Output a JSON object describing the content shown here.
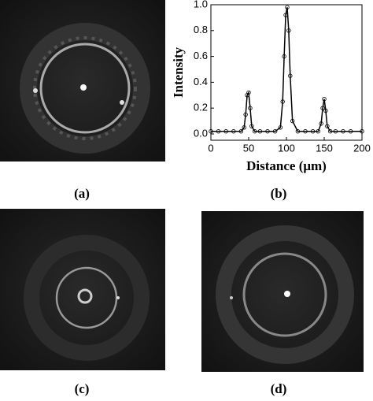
{
  "chart_data": {
    "type": "line",
    "xlabel": "Distance (μm)",
    "ylabel": "Intensity",
    "xlim": [
      0,
      200
    ],
    "xticks": [
      0,
      50,
      100,
      150,
      200
    ],
    "ylim": [
      0,
      1.0
    ],
    "yticks": [
      {
        "value": 0,
        "label": "0.0"
      },
      0.2,
      0.4,
      0.6,
      0.8,
      {
        "value": 1.0,
        "label": "1.0"
      }
    ],
    "x": [
      0,
      10,
      20,
      30,
      40,
      44,
      46,
      48,
      50,
      52,
      54,
      58,
      65,
      75,
      85,
      92,
      95,
      97,
      99,
      101,
      103,
      105,
      108,
      115,
      125,
      135,
      142,
      146,
      148,
      150,
      152,
      154,
      158,
      165,
      175,
      185,
      200
    ],
    "series": [
      {
        "color": "#000000",
        "values": [
          0.02,
          0.02,
          0.02,
          0.02,
          0.02,
          0.05,
          0.15,
          0.3,
          0.32,
          0.2,
          0.06,
          0.02,
          0.02,
          0.02,
          0.02,
          0.05,
          0.25,
          0.6,
          0.92,
          0.98,
          0.8,
          0.45,
          0.1,
          0.02,
          0.02,
          0.02,
          0.02,
          0.08,
          0.2,
          0.27,
          0.18,
          0.06,
          0.02,
          0.02,
          0.02,
          0.02,
          0.02
        ]
      }
    ]
  },
  "captions": [
    "(a)",
    "(b)",
    "(c)",
    "(d)"
  ]
}
